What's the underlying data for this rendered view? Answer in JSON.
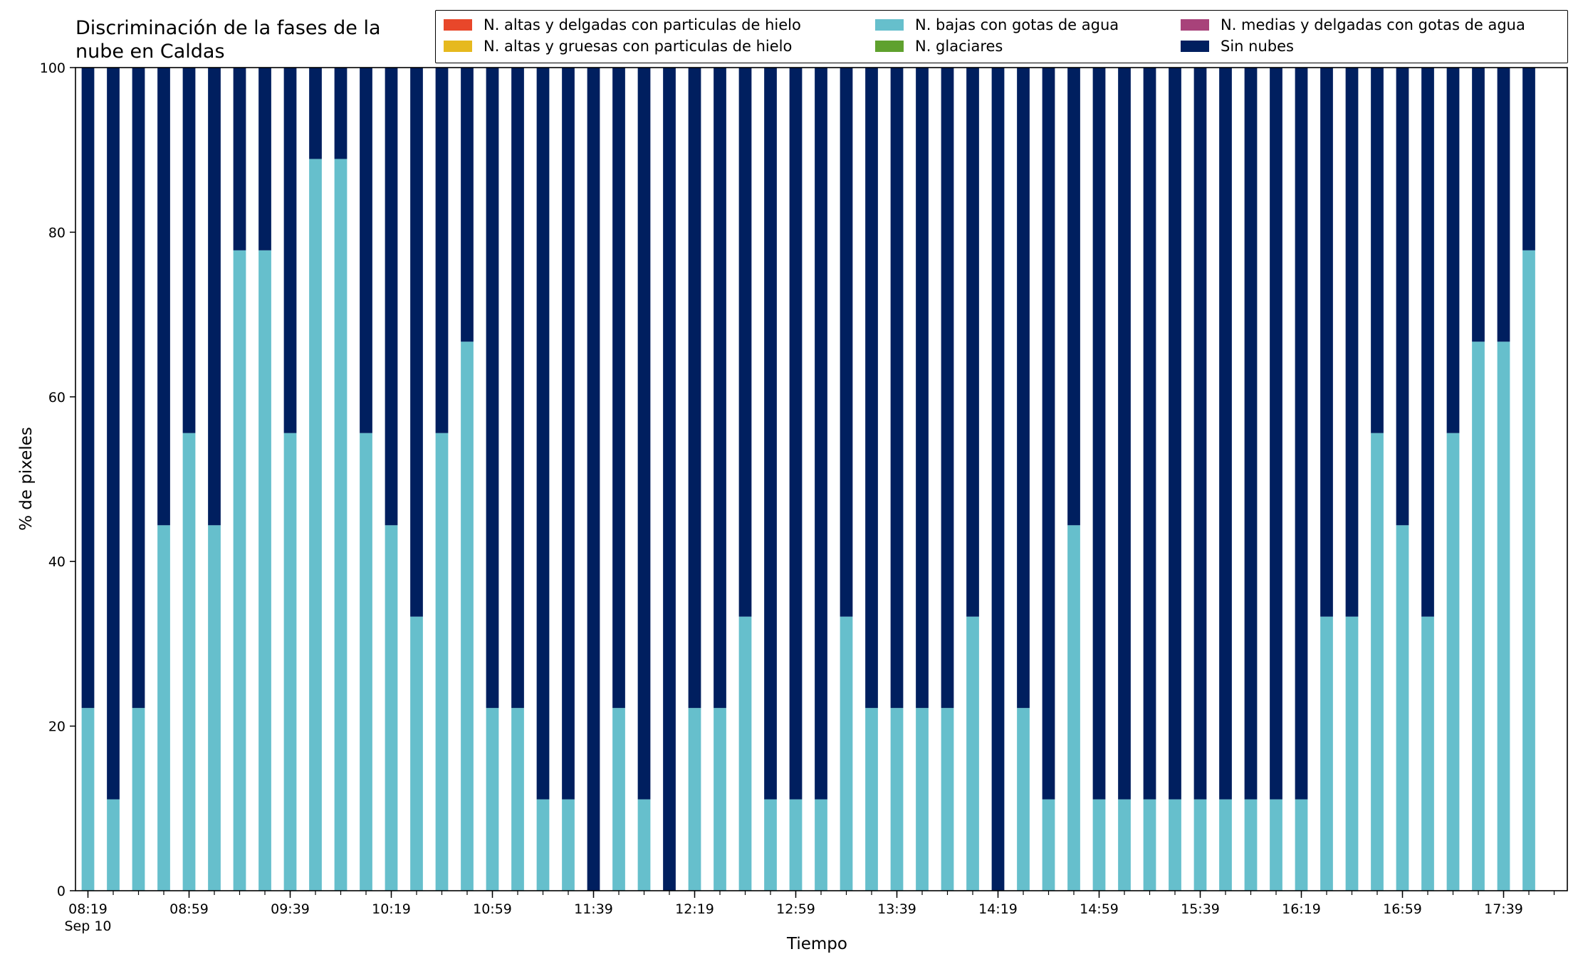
{
  "chart_data": {
    "type": "bar",
    "stacked": true,
    "title_line1": "Discriminación de la fases de la",
    "title_line2": "nube en Caldas",
    "xlabel": "Tiempo",
    "ylabel": "% de pixeles",
    "ylim": [
      0,
      100
    ],
    "yticks": [
      "0",
      "20",
      "40",
      "60",
      "80",
      "100"
    ],
    "xtick_labels": [
      "08:19",
      "08:59",
      "09:39",
      "10:19",
      "10:59",
      "11:39",
      "12:19",
      "12:59",
      "13:39",
      "14:19",
      "14:59",
      "15:39",
      "16:19",
      "16:59",
      "17:39"
    ],
    "xtick_date": "Sep 10",
    "grid": false,
    "legend_position": "top-right",
    "legend": [
      {
        "name": "N. altas y delgadas con particulas de hielo",
        "color": "#e8472a"
      },
      {
        "name": "N. altas y gruesas con particulas de hielo",
        "color": "#e6b91e"
      },
      {
        "name": "N. bajas con gotas de agua",
        "color": "#66bfcc"
      },
      {
        "name": "N. glaciares",
        "color": "#5fa12e"
      },
      {
        "name": "N. medias y delgadas con gotas de agua",
        "color": "#a8427a"
      },
      {
        "name": "Sin nubes",
        "color": "#001f5f"
      }
    ],
    "series": [
      {
        "name": "N. bajas con gotas de agua",
        "color": "#66bfcc",
        "values": [
          22.2,
          11.1,
          22.2,
          44.4,
          55.6,
          44.4,
          77.8,
          77.8,
          55.6,
          88.9,
          88.9,
          55.6,
          44.4,
          33.3,
          55.6,
          66.7,
          22.2,
          22.2,
          11.1,
          11.1,
          0,
          22.2,
          11.1,
          0,
          22.2,
          22.2,
          33.3,
          11.1,
          11.1,
          11.1,
          33.3,
          22.2,
          22.2,
          22.2,
          22.2,
          33.3,
          0,
          22.2,
          11.1,
          44.4,
          11.1,
          11.1,
          11.1,
          11.1,
          11.1,
          11.1,
          11.1,
          11.1,
          11.1,
          33.3,
          33.3,
          55.6,
          44.4,
          33.3,
          55.6,
          66.7,
          66.7,
          77.8
        ]
      },
      {
        "name": "Sin nubes",
        "color": "#001f5f",
        "values": [
          77.8,
          88.9,
          77.8,
          55.6,
          44.4,
          55.6,
          22.2,
          22.2,
          44.4,
          11.1,
          11.1,
          44.4,
          55.6,
          66.7,
          44.4,
          33.3,
          77.8,
          77.8,
          88.9,
          88.9,
          100,
          77.8,
          88.9,
          100,
          77.8,
          77.8,
          66.7,
          88.9,
          88.9,
          88.9,
          66.7,
          77.8,
          77.8,
          77.8,
          77.8,
          66.7,
          100,
          77.8,
          88.9,
          55.6,
          88.9,
          88.9,
          88.9,
          88.9,
          88.9,
          88.9,
          88.9,
          88.9,
          88.9,
          66.7,
          66.7,
          44.4,
          55.6,
          66.7,
          44.4,
          33.3,
          33.3,
          22.2
        ]
      }
    ]
  }
}
